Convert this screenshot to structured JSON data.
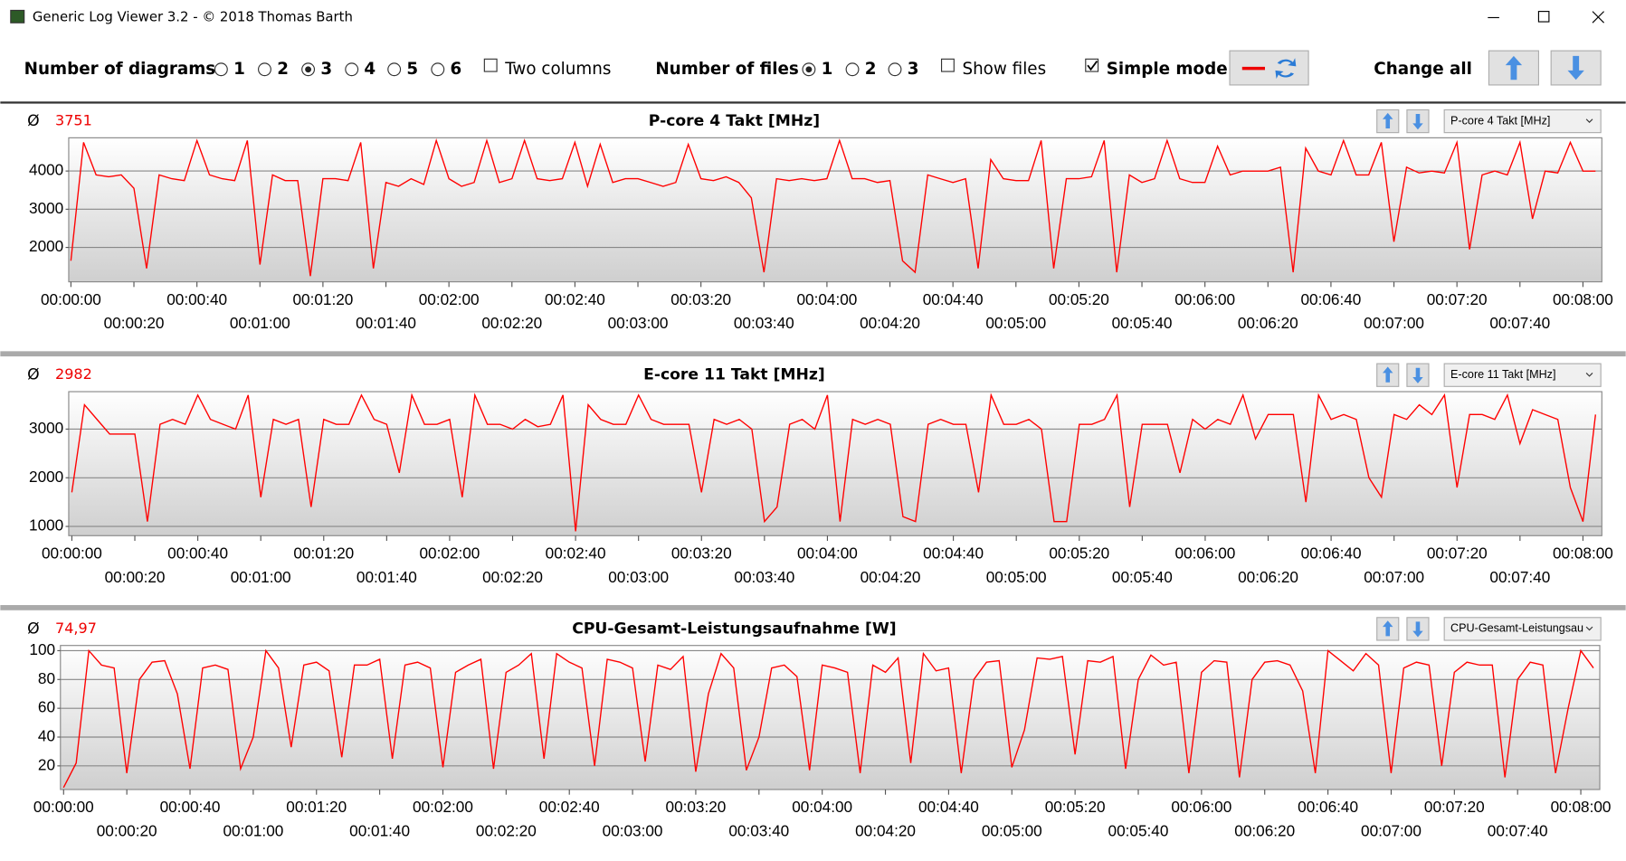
{
  "window": {
    "title": "Generic Log Viewer 3.2 - © 2018 Thomas Barth"
  },
  "toolbar": {
    "diagrams": {
      "label": "Number of diagrams",
      "options": [
        {
          "label": "1",
          "checked": false
        },
        {
          "label": "2",
          "checked": false
        },
        {
          "label": "3",
          "checked": true
        },
        {
          "label": "4",
          "checked": false
        },
        {
          "label": "5",
          "checked": false
        },
        {
          "label": "6",
          "checked": false
        }
      ]
    },
    "two_columns": {
      "label": "Two columns",
      "checked": false
    },
    "files": {
      "label": "Number of files",
      "options": [
        {
          "label": "1",
          "checked": true
        },
        {
          "label": "2",
          "checked": false
        },
        {
          "label": "3",
          "checked": false
        }
      ]
    },
    "show_files": {
      "label": "Show files",
      "checked": false
    },
    "simple_mode": {
      "label": "Simple mode",
      "checked": true
    },
    "change_all": "Change all"
  },
  "chart_data": [
    {
      "type": "line",
      "title": "P-core 4 Takt [MHz]",
      "average_symbol": "Ø",
      "average": 3751,
      "selector": "P-core 4 Takt [MHz]",
      "x": [
        0,
        4,
        8,
        12,
        16,
        20,
        24,
        28,
        32,
        36,
        40,
        44,
        48,
        52,
        56,
        60,
        64,
        68,
        72,
        76,
        80,
        84,
        88,
        92,
        96,
        100,
        104,
        108,
        112,
        116,
        120,
        124,
        128,
        132,
        136,
        140,
        144,
        148,
        152,
        156,
        160,
        164,
        168,
        172,
        176,
        180,
        184,
        188,
        192,
        196,
        200,
        204,
        208,
        212,
        216,
        220,
        224,
        228,
        232,
        236,
        240,
        244,
        248,
        252,
        256,
        260,
        264,
        268,
        272,
        276,
        280,
        284,
        288,
        292,
        296,
        300,
        304,
        308,
        312,
        316,
        320,
        324,
        328,
        332,
        336,
        340,
        344,
        348,
        352,
        356,
        360,
        364,
        368,
        372,
        376,
        380,
        384,
        388,
        392,
        396,
        400,
        404,
        408,
        412,
        416,
        420,
        424,
        428,
        432,
        436,
        440,
        444,
        448,
        452,
        456,
        460,
        464,
        468,
        472,
        476,
        480,
        484
      ],
      "series": [
        {
          "name": "P-core 4 Takt [MHz]",
          "color": "#ff0000",
          "values": [
            1650,
            4750,
            3900,
            3850,
            3900,
            3550,
            1450,
            3900,
            3800,
            3750,
            4800,
            3900,
            3800,
            3750,
            4800,
            1550,
            3900,
            3750,
            3750,
            1250,
            3800,
            3800,
            3750,
            4750,
            1450,
            3700,
            3600,
            3800,
            3650,
            4800,
            3800,
            3600,
            3700,
            4800,
            3700,
            3800,
            4800,
            3800,
            3750,
            3800,
            4750,
            3600,
            4700,
            3700,
            3800,
            3800,
            3700,
            3600,
            3700,
            4700,
            3800,
            3750,
            3850,
            3700,
            3300,
            1350,
            3800,
            3750,
            3800,
            3750,
            3800,
            4800,
            3800,
            3800,
            3700,
            3750,
            1650,
            1350,
            3900,
            3800,
            3700,
            3800,
            1450,
            4300,
            3800,
            3750,
            3750,
            4800,
            1450,
            3800,
            3800,
            3850,
            4800,
            1350,
            3900,
            3700,
            3800,
            4800,
            3800,
            3700,
            3700,
            4650,
            3900,
            4000,
            4000,
            4000,
            4100,
            1350,
            4600,
            4000,
            3900,
            4800,
            3900,
            3900,
            4750,
            2150,
            4100,
            3950,
            4000,
            3950,
            4750,
            1950,
            3900,
            4000,
            3900,
            4750,
            2750,
            4000,
            3950,
            4750,
            4000,
            4000
          ]
        }
      ],
      "xlim": [
        -0.7,
        486
      ],
      "ylim": [
        1100,
        4870
      ],
      "yticks": [
        2000,
        3000,
        4000
      ],
      "grid": true,
      "xticks": [
        {
          "value": 0,
          "label": "00:00:00"
        },
        {
          "value": 20,
          "label": "00:00:20"
        },
        {
          "value": 40,
          "label": "00:00:40"
        },
        {
          "value": 60,
          "label": "00:01:00"
        },
        {
          "value": 80,
          "label": "00:01:20"
        },
        {
          "value": 100,
          "label": "00:01:40"
        },
        {
          "value": 120,
          "label": "00:02:00"
        },
        {
          "value": 140,
          "label": "00:02:20"
        },
        {
          "value": 160,
          "label": "00:02:40"
        },
        {
          "value": 180,
          "label": "00:03:00"
        },
        {
          "value": 200,
          "label": "00:03:20"
        },
        {
          "value": 220,
          "label": "00:03:40"
        },
        {
          "value": 240,
          "label": "00:04:00"
        },
        {
          "value": 260,
          "label": "00:04:20"
        },
        {
          "value": 280,
          "label": "00:04:40"
        },
        {
          "value": 300,
          "label": "00:05:00"
        },
        {
          "value": 320,
          "label": "00:05:20"
        },
        {
          "value": 340,
          "label": "00:05:40"
        },
        {
          "value": 360,
          "label": "00:06:00"
        },
        {
          "value": 380,
          "label": "00:06:20"
        },
        {
          "value": 400,
          "label": "00:06:40"
        },
        {
          "value": 420,
          "label": "00:07:00"
        },
        {
          "value": 440,
          "label": "00:07:20"
        },
        {
          "value": 460,
          "label": "00:07:40"
        },
        {
          "value": 480,
          "label": "00:08:00"
        }
      ]
    },
    {
      "type": "line",
      "title": "E-core 11 Takt [MHz]",
      "average_symbol": "Ø",
      "average": 2982,
      "selector": "E-core 11 Takt [MHz]",
      "x": [
        0,
        4,
        8,
        12,
        16,
        20,
        24,
        28,
        32,
        36,
        40,
        44,
        48,
        52,
        56,
        60,
        64,
        68,
        72,
        76,
        80,
        84,
        88,
        92,
        96,
        100,
        104,
        108,
        112,
        116,
        120,
        124,
        128,
        132,
        136,
        140,
        144,
        148,
        152,
        156,
        160,
        164,
        168,
        172,
        176,
        180,
        184,
        188,
        192,
        196,
        200,
        204,
        208,
        212,
        216,
        220,
        224,
        228,
        232,
        236,
        240,
        244,
        248,
        252,
        256,
        260,
        264,
        268,
        272,
        276,
        280,
        284,
        288,
        292,
        296,
        300,
        304,
        308,
        312,
        316,
        320,
        324,
        328,
        332,
        336,
        340,
        344,
        348,
        352,
        356,
        360,
        364,
        368,
        372,
        376,
        380,
        384,
        388,
        392,
        396,
        400,
        404,
        408,
        412,
        416,
        420,
        424,
        428,
        432,
        436,
        440,
        444,
        448,
        452,
        456,
        460,
        464,
        468,
        472,
        476,
        480,
        484
      ],
      "series": [
        {
          "name": "E-core 11 Takt [MHz]",
          "color": "#ff0000",
          "values": [
            1700,
            3500,
            3200,
            2900,
            2900,
            2900,
            1100,
            3100,
            3200,
            3100,
            3700,
            3200,
            3100,
            3000,
            3700,
            1600,
            3200,
            3100,
            3200,
            1400,
            3200,
            3100,
            3100,
            3700,
            3200,
            3100,
            2100,
            3700,
            3100,
            3100,
            3200,
            1600,
            3700,
            3100,
            3100,
            3000,
            3200,
            3050,
            3100,
            3700,
            900,
            3500,
            3200,
            3100,
            3100,
            3700,
            3200,
            3100,
            3100,
            3100,
            1700,
            3200,
            3100,
            3200,
            3000,
            1100,
            1400,
            3100,
            3200,
            3000,
            3700,
            1100,
            3200,
            3100,
            3200,
            3100,
            1200,
            1100,
            3100,
            3200,
            3100,
            3100,
            1700,
            3700,
            3100,
            3100,
            3200,
            3000,
            1100,
            1100,
            3100,
            3100,
            3200,
            3700,
            1400,
            3100,
            3100,
            3100,
            2100,
            3200,
            3000,
            3200,
            3100,
            3700,
            2800,
            3300,
            3300,
            3300,
            1500,
            3700,
            3200,
            3300,
            3200,
            2000,
            1600,
            3300,
            3200,
            3500,
            3300,
            3700,
            1800,
            3300,
            3300,
            3200,
            3700,
            2700,
            3400,
            3300,
            3200,
            1800,
            1100,
            3300
          ]
        }
      ],
      "xlim": [
        -1,
        486
      ],
      "ylim": [
        810,
        3770
      ],
      "yticks": [
        1000,
        2000,
        3000
      ],
      "grid": true,
      "xticks": [
        {
          "value": 0,
          "label": "00:00:00"
        },
        {
          "value": 20,
          "label": "00:00:20"
        },
        {
          "value": 40,
          "label": "00:00:40"
        },
        {
          "value": 60,
          "label": "00:01:00"
        },
        {
          "value": 80,
          "label": "00:01:20"
        },
        {
          "value": 100,
          "label": "00:01:40"
        },
        {
          "value": 120,
          "label": "00:02:00"
        },
        {
          "value": 140,
          "label": "00:02:20"
        },
        {
          "value": 160,
          "label": "00:02:40"
        },
        {
          "value": 180,
          "label": "00:03:00"
        },
        {
          "value": 200,
          "label": "00:03:20"
        },
        {
          "value": 220,
          "label": "00:03:40"
        },
        {
          "value": 240,
          "label": "00:04:00"
        },
        {
          "value": 260,
          "label": "00:04:20"
        },
        {
          "value": 280,
          "label": "00:04:40"
        },
        {
          "value": 300,
          "label": "00:05:00"
        },
        {
          "value": 320,
          "label": "00:05:20"
        },
        {
          "value": 340,
          "label": "00:05:40"
        },
        {
          "value": 360,
          "label": "00:06:00"
        },
        {
          "value": 380,
          "label": "00:06:20"
        },
        {
          "value": 400,
          "label": "00:06:40"
        },
        {
          "value": 420,
          "label": "00:07:00"
        },
        {
          "value": 440,
          "label": "00:07:20"
        },
        {
          "value": 460,
          "label": "00:07:40"
        },
        {
          "value": 480,
          "label": "00:08:00"
        }
      ]
    },
    {
      "type": "line",
      "title": "CPU-Gesamt-Leistungsaufnahme [W]",
      "average_symbol": "Ø",
      "average": {
        "value": 74.97,
        "label": "74,97"
      },
      "selector": "CPU-Gesamt-Leistungsau",
      "x": [
        0,
        4,
        8,
        12,
        16,
        20,
        24,
        28,
        32,
        36,
        40,
        44,
        48,
        52,
        56,
        60,
        64,
        68,
        72,
        76,
        80,
        84,
        88,
        92,
        96,
        100,
        104,
        108,
        112,
        116,
        120,
        124,
        128,
        132,
        136,
        140,
        144,
        148,
        152,
        156,
        160,
        164,
        168,
        172,
        176,
        180,
        184,
        188,
        192,
        196,
        200,
        204,
        208,
        212,
        216,
        220,
        224,
        228,
        232,
        236,
        240,
        244,
        248,
        252,
        256,
        260,
        264,
        268,
        272,
        276,
        280,
        284,
        288,
        292,
        296,
        300,
        304,
        308,
        312,
        316,
        320,
        324,
        328,
        332,
        336,
        340,
        344,
        348,
        352,
        356,
        360,
        364,
        368,
        372,
        376,
        380,
        384,
        388,
        392,
        396,
        400,
        404,
        408,
        412,
        416,
        420,
        424,
        428,
        432,
        436,
        440,
        444,
        448,
        452,
        456,
        460,
        464,
        468,
        472,
        476,
        480,
        484
      ],
      "series": [
        {
          "name": "CPU-Gesamt-Leistungsaufnahme [W]",
          "color": "#ff0000",
          "values": [
            5,
            22,
            100,
            90,
            88,
            15,
            80,
            92,
            93,
            70,
            18,
            88,
            90,
            87,
            18,
            40,
            100,
            88,
            33,
            90,
            92,
            86,
            26,
            90,
            90,
            94,
            25,
            90,
            92,
            88,
            19,
            85,
            90,
            94,
            18,
            85,
            90,
            98,
            25,
            98,
            92,
            88,
            20,
            94,
            92,
            88,
            23,
            90,
            87,
            96,
            16,
            70,
            98,
            88,
            17,
            40,
            88,
            90,
            82,
            17,
            90,
            88,
            85,
            15,
            90,
            85,
            95,
            22,
            98,
            86,
            88,
            15,
            80,
            92,
            93,
            19,
            45,
            95,
            94,
            96,
            28,
            93,
            92,
            96,
            18,
            80,
            97,
            90,
            92,
            15,
            85,
            93,
            92,
            12,
            80,
            92,
            93,
            90,
            72,
            15,
            100,
            93,
            86,
            98,
            90,
            15,
            88,
            92,
            90,
            20,
            85,
            92,
            90,
            90,
            12,
            80,
            92,
            90,
            15,
            60,
            100,
            88
          ]
        }
      ],
      "xlim": [
        -1,
        486
      ],
      "ylim": [
        3.6,
        103.6
      ],
      "yticks": [
        20,
        40,
        60,
        80,
        100
      ],
      "grid": true,
      "xticks": [
        {
          "value": 0,
          "label": "00:00:00"
        },
        {
          "value": 20,
          "label": "00:00:20"
        },
        {
          "value": 40,
          "label": "00:00:40"
        },
        {
          "value": 60,
          "label": "00:01:00"
        },
        {
          "value": 80,
          "label": "00:01:20"
        },
        {
          "value": 100,
          "label": "00:01:40"
        },
        {
          "value": 120,
          "label": "00:02:00"
        },
        {
          "value": 140,
          "label": "00:02:20"
        },
        {
          "value": 160,
          "label": "00:02:40"
        },
        {
          "value": 180,
          "label": "00:03:00"
        },
        {
          "value": 200,
          "label": "00:03:20"
        },
        {
          "value": 220,
          "label": "00:03:40"
        },
        {
          "value": 240,
          "label": "00:04:00"
        },
        {
          "value": 260,
          "label": "00:04:20"
        },
        {
          "value": 280,
          "label": "00:04:40"
        },
        {
          "value": 300,
          "label": "00:05:00"
        },
        {
          "value": 320,
          "label": "00:05:20"
        },
        {
          "value": 340,
          "label": "00:05:40"
        },
        {
          "value": 360,
          "label": "00:06:00"
        },
        {
          "value": 380,
          "label": "00:06:20"
        },
        {
          "value": 400,
          "label": "00:06:40"
        },
        {
          "value": 420,
          "label": "00:07:00"
        },
        {
          "value": 440,
          "label": "00:07:20"
        },
        {
          "value": 460,
          "label": "00:07:40"
        },
        {
          "value": 480,
          "label": "00:08:00"
        }
      ]
    }
  ]
}
